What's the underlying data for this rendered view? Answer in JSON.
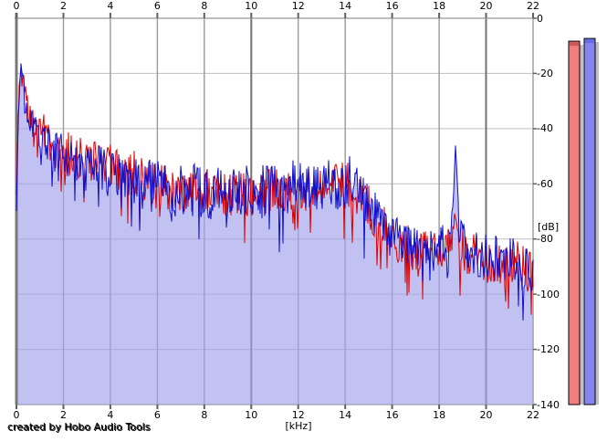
{
  "window": {
    "background": "#ffffff"
  },
  "footer": {
    "credit": "created by Hobo Audio Tools"
  },
  "axes": {
    "x": {
      "unit_label": "[kHz]",
      "tick_values": [
        0,
        2,
        4,
        6,
        8,
        10,
        12,
        14,
        16,
        18,
        20,
        22
      ],
      "tick_labels": [
        "0",
        "2",
        "4",
        "6",
        "8",
        "10",
        "12",
        "14",
        "16",
        "18",
        "20",
        "22"
      ],
      "shown_on": [
        "top",
        "bottom"
      ]
    },
    "y": {
      "unit_label": "[dB]",
      "tick_values": [
        0,
        -20,
        -40,
        -60,
        -80,
        -100,
        -120,
        -140
      ],
      "tick_labels": [
        "0",
        "-20",
        "-40",
        "-60",
        "-80",
        "-100",
        "-120",
        "-140"
      ],
      "shown_on": [
        "right"
      ]
    }
  },
  "colors": {
    "red_trace": "#dd0000",
    "blue_trace": "#0f0fcc",
    "area_fill": "rgba(160,160,235,0.65)",
    "h_gridline": "#bfbfbf",
    "v_gridline": "#9a9a9a",
    "v_gridline_major": "#737373",
    "plot_border_left": "#787878",
    "plot_border": "#a8a8a8",
    "tick_mark": "#606060",
    "meter_red_fill": "#f08080",
    "meter_red_cap": "#cc5858",
    "meter_blue_fill": "#8585f0",
    "meter_blue_cap": "#6a6ae0",
    "meter_shadow": "#c0c0c0",
    "meter_border": "#000000"
  },
  "meters": {
    "red": {
      "level_db": -8.3
    },
    "blue": {
      "level_db": -7.3
    }
  },
  "chart_data": {
    "type": "line",
    "title": "",
    "xlabel": "[kHz]",
    "ylabel": "[dB]",
    "xlim": [
      0,
      22
    ],
    "ylim": [
      -140,
      0
    ],
    "grid": true,
    "legend": "none",
    "description": "Audio FFT spectrum, two noisy traces (red and blue) over 0-22 kHz; blue trace area-filled in light lavender. Values below are the trace center-level envelopes [kHz, dB] plus peak-to-peak noise half-amplitude per frequency band [kHz_start, kHz_end, dB].",
    "series": [
      {
        "name": "red channel",
        "color": "#dd0000",
        "seed": 7,
        "envelope_khz_db": [
          [
            0,
            -62
          ],
          [
            0.05,
            -42
          ],
          [
            0.12,
            -26
          ],
          [
            0.2,
            -20
          ],
          [
            0.3,
            -26
          ],
          [
            0.5,
            -33
          ],
          [
            0.8,
            -38
          ],
          [
            1.2,
            -43
          ],
          [
            1.8,
            -48
          ],
          [
            2.5,
            -50
          ],
          [
            3.5,
            -52
          ],
          [
            4.5,
            -55
          ],
          [
            5.5,
            -59
          ],
          [
            6.5,
            -62
          ],
          [
            8,
            -63
          ],
          [
            10,
            -64
          ],
          [
            11,
            -63
          ],
          [
            12,
            -63
          ],
          [
            13,
            -62
          ],
          [
            14,
            -61
          ],
          [
            14.6,
            -63
          ],
          [
            15.2,
            -71
          ],
          [
            15.8,
            -78
          ],
          [
            16.3,
            -82
          ],
          [
            17,
            -84
          ],
          [
            18,
            -85
          ],
          [
            18.5,
            -81
          ],
          [
            18.65,
            -72
          ],
          [
            18.7,
            -70
          ],
          [
            18.75,
            -72
          ],
          [
            18.9,
            -81
          ],
          [
            19.2,
            -85
          ],
          [
            20,
            -87
          ],
          [
            21,
            -89
          ],
          [
            22,
            -91
          ]
        ],
        "noise_bands": [
          [
            0,
            0.3,
            4
          ],
          [
            0.3,
            1,
            6
          ],
          [
            1,
            5,
            8
          ],
          [
            5,
            15,
            9
          ],
          [
            15,
            18.55,
            8
          ],
          [
            18.55,
            18.85,
            3
          ],
          [
            18.85,
            22,
            9
          ]
        ]
      },
      {
        "name": "blue channel",
        "color": "#0f0fcc",
        "seed": 13,
        "area_fill": true,
        "envelope_khz_db": [
          [
            0,
            -70
          ],
          [
            0.05,
            -45
          ],
          [
            0.12,
            -28
          ],
          [
            0.2,
            -19
          ],
          [
            0.3,
            -27
          ],
          [
            0.5,
            -34
          ],
          [
            0.8,
            -39
          ],
          [
            1.2,
            -44
          ],
          [
            1.8,
            -49
          ],
          [
            2.5,
            -52
          ],
          [
            3.5,
            -54
          ],
          [
            4.5,
            -57
          ],
          [
            5.5,
            -60
          ],
          [
            6.5,
            -62
          ],
          [
            8,
            -63
          ],
          [
            10,
            -63
          ],
          [
            11,
            -62
          ],
          [
            12,
            -61
          ],
          [
            13,
            -60
          ],
          [
            14,
            -59
          ],
          [
            14.6,
            -62
          ],
          [
            15.2,
            -70
          ],
          [
            15.8,
            -77
          ],
          [
            16.3,
            -81
          ],
          [
            17,
            -83
          ],
          [
            18,
            -84
          ],
          [
            18.5,
            -80
          ],
          [
            18.62,
            -62
          ],
          [
            18.7,
            -47
          ],
          [
            18.78,
            -62
          ],
          [
            18.9,
            -80
          ],
          [
            19.2,
            -84
          ],
          [
            20,
            -86
          ],
          [
            21,
            -88
          ],
          [
            22,
            -90
          ]
        ],
        "noise_bands": [
          [
            0,
            0.3,
            4
          ],
          [
            0.3,
            1,
            6
          ],
          [
            1,
            5,
            8
          ],
          [
            5,
            15,
            10
          ],
          [
            15,
            18.55,
            8
          ],
          [
            18.55,
            18.85,
            2
          ],
          [
            18.85,
            22,
            9
          ]
        ]
      }
    ],
    "features": [
      {
        "desc": "low-frequency peak",
        "freq_khz": 0.2,
        "level_db": -18
      },
      {
        "desc": "narrow tone spike (blue)",
        "freq_khz": 18.7,
        "level_db": -46
      },
      {
        "desc": "noise shelf drop",
        "freq_khz_range": [
          15,
          16.5
        ],
        "level_db_change": "-62 to -82"
      }
    ]
  }
}
